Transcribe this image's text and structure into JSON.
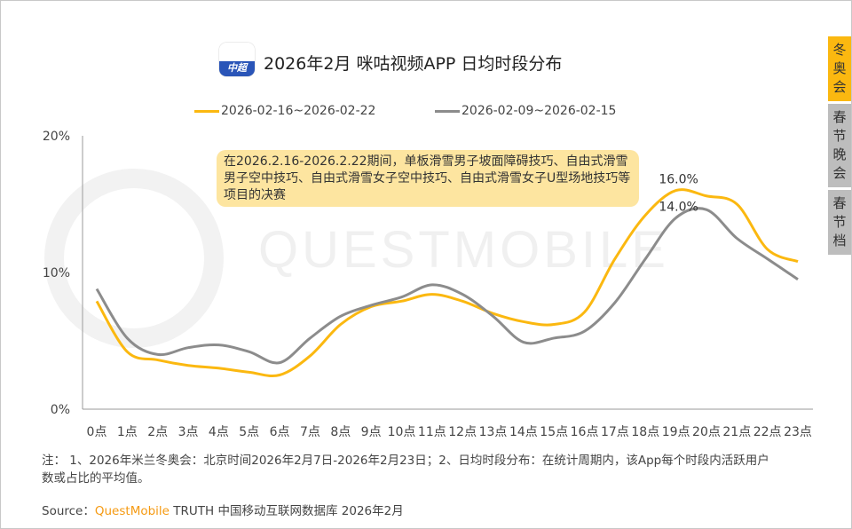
{
  "title": "2026年2月 咪咕视频APP 日均时段分布",
  "logo_text": "中超",
  "tabs": [
    {
      "label": "冬奥会",
      "active": true
    },
    {
      "label": "春节晚会",
      "active": false
    },
    {
      "label": "春节档",
      "active": false
    }
  ],
  "annotation": "在2026.2.16-2026.2.22期间，单板滑雪男子坡面障碍技巧、自由式滑雪男子空中技巧、自由式滑雪女子空中技巧、自由式滑雪女子U型场地技巧等项目的决赛",
  "note": "注：  1、2026年米兰冬奥会：北京时间2026年2月7日-2026年2月23日；2、日均时段分布：在统计周期内，该App每个时段内活跃用户数或占比的平均值。",
  "source": {
    "prefix": "Source：",
    "brand": "QuestMobile",
    "rest": " TRUTH 中国移动互联网数据库 2026年2月"
  },
  "watermark": "QUESTMOBILE",
  "chart_data": {
    "type": "line",
    "categories": [
      "0点",
      "1点",
      "2点",
      "3点",
      "4点",
      "5点",
      "6点",
      "7点",
      "8点",
      "9点",
      "10点",
      "11点",
      "12点",
      "13点",
      "14点",
      "15点",
      "16点",
      "17点",
      "18点",
      "19点",
      "20点",
      "21点",
      "22点",
      "23点"
    ],
    "ylim": [
      0,
      20
    ],
    "yticks": [
      "0%",
      "10%",
      "20%"
    ],
    "legend": "top",
    "series": [
      {
        "name": "2026-02-16~2026-02-22",
        "color": "#fbb810",
        "values": [
          7.9,
          4.2,
          3.6,
          3.2,
          3.0,
          2.7,
          2.5,
          3.9,
          6.2,
          7.5,
          7.9,
          8.4,
          7.9,
          7.0,
          6.4,
          6.2,
          7.1,
          11.0,
          14.2,
          16.0,
          15.6,
          15.0,
          11.7,
          10.8
        ]
      },
      {
        "name": "2026-02-09~2026-02-15",
        "color": "#8c8c8c",
        "values": [
          8.8,
          5.2,
          4.0,
          4.5,
          4.7,
          4.2,
          3.4,
          5.2,
          6.8,
          7.6,
          8.2,
          9.1,
          8.4,
          6.8,
          4.9,
          5.2,
          5.7,
          7.8,
          11.0,
          14.0,
          14.6,
          12.5,
          11.0,
          9.5
        ]
      }
    ],
    "data_labels": [
      {
        "text": "16.0%",
        "series": 0,
        "index": 19
      },
      {
        "text": "14.0%",
        "series": 1,
        "index": 19
      }
    ]
  }
}
